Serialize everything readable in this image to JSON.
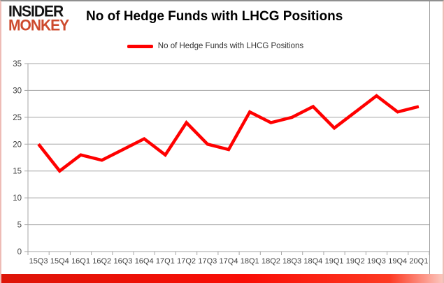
{
  "logo": {
    "line1": "INSIDER",
    "line2": "MONKEY"
  },
  "title": "No of Hedge Funds with LHCG Positions",
  "legend": {
    "label": "No of Hedge Funds with LHCG Positions"
  },
  "colors": {
    "line": "#ff0000",
    "logo_black": "#141414",
    "logo_red": "#cd4a2d",
    "grid": "#a6a6a6",
    "axis_text": "#404040",
    "bottom_bar": "#f90d06",
    "side_border": "#eebcb6"
  },
  "chart_data": {
    "type": "line",
    "title": "No of Hedge Funds with LHCG Positions",
    "categories": [
      "15Q3",
      "15Q4",
      "16Q1",
      "16Q2",
      "16Q3",
      "16Q4",
      "17Q1",
      "17Q2",
      "17Q3",
      "17Q4",
      "18Q1",
      "18Q2",
      "18Q3",
      "18Q4",
      "19Q1",
      "19Q2",
      "19Q3",
      "19Q4",
      "20Q1"
    ],
    "series": [
      {
        "name": "No of Hedge Funds with LHCG Positions",
        "values": [
          20,
          15,
          18,
          17,
          19,
          21,
          18,
          24,
          20,
          19,
          26,
          24,
          25,
          27,
          23,
          26,
          29,
          26,
          27
        ]
      }
    ],
    "xlabel": "",
    "ylabel": "",
    "ylim": [
      0,
      35
    ],
    "ytick_step": 5,
    "grid": true,
    "legend_position": "top-center"
  }
}
